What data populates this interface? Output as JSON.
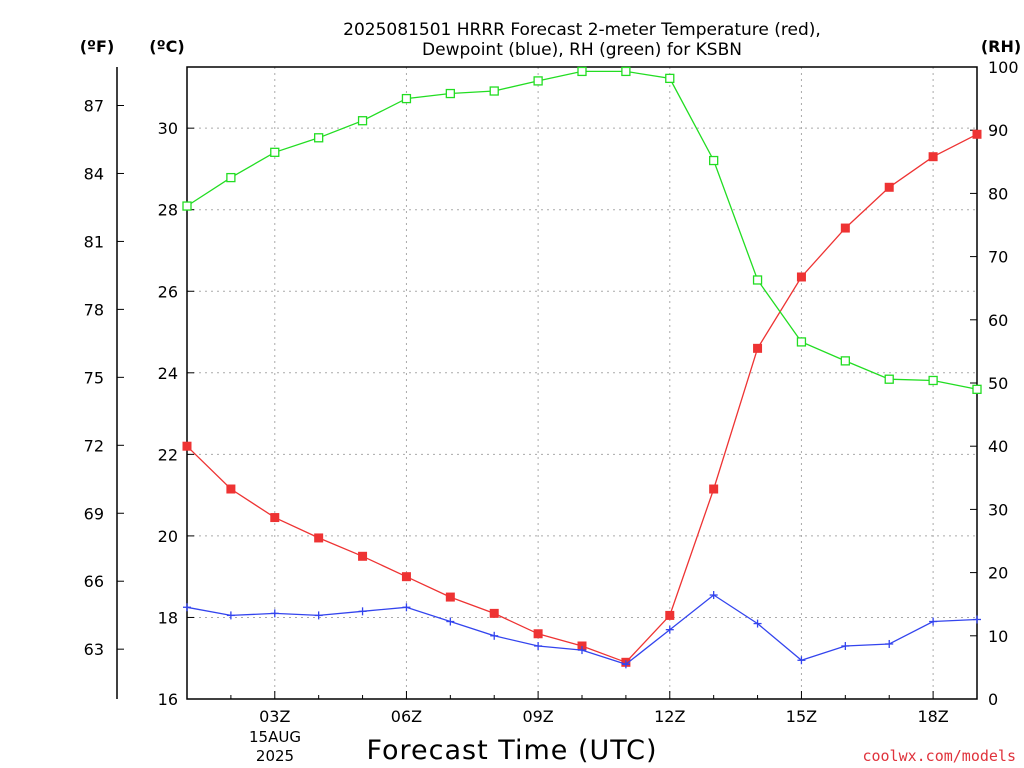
{
  "chart_data": {
    "type": "line",
    "title_line1": "2025081501 HRRR Forecast 2-meter Temperature (red),",
    "title_line2": "Dewpoint (blue), RH (green) for KSBN",
    "xlabel": "Forecast Time (UTC)",
    "left_outer_unit": "(ºF)",
    "left_inner_unit": "(ºC)",
    "right_unit": "(RH)",
    "credit": "coolwx.com/models",
    "x_tick_labels": [
      "03Z",
      "06Z",
      "09Z",
      "12Z",
      "15Z",
      "18Z"
    ],
    "x_tick_hours": [
      3,
      6,
      9,
      12,
      15,
      18
    ],
    "date_label_line1": "15AUG",
    "date_label_line2": "2025",
    "xlim": [
      1,
      19
    ],
    "ylim_c": [
      16,
      31.5
    ],
    "ylim_f": [
      60.8,
      88.7
    ],
    "ylim_rh": [
      0,
      100
    ],
    "f_ticks": [
      63,
      66,
      69,
      72,
      75,
      78,
      81,
      84,
      87
    ],
    "c_ticks": [
      16,
      18,
      20,
      22,
      24,
      26,
      28,
      30
    ],
    "rh_ticks": [
      0,
      10,
      20,
      30,
      40,
      50,
      60,
      70,
      80,
      90,
      100
    ],
    "grid": true,
    "series": [
      {
        "name": "Temperature",
        "color": "#ee3333",
        "marker": "filled-square",
        "axis": "c",
        "x": [
          1,
          2,
          3,
          4,
          5,
          6,
          7,
          8,
          9,
          10,
          11,
          12,
          13,
          14,
          15,
          16,
          17,
          18,
          19
        ],
        "values": [
          22.2,
          21.15,
          20.45,
          19.95,
          19.5,
          19.0,
          18.5,
          18.1,
          17.6,
          17.3,
          16.9,
          18.05,
          21.15,
          24.6,
          26.35,
          27.55,
          28.55,
          29.3,
          29.85
        ]
      },
      {
        "name": "Dewpoint",
        "color": "#3344ee",
        "marker": "plus",
        "axis": "c",
        "x": [
          1,
          2,
          3,
          4,
          5,
          6,
          7,
          8,
          9,
          10,
          11,
          12,
          13,
          14,
          15,
          16,
          17,
          18,
          19
        ],
        "values": [
          18.25,
          18.05,
          18.1,
          18.05,
          18.15,
          18.25,
          17.9,
          17.55,
          17.3,
          17.2,
          16.85,
          17.7,
          18.55,
          17.85,
          16.95,
          17.3,
          17.35,
          17.9,
          17.95
        ]
      },
      {
        "name": "RH",
        "color": "#22dd22",
        "marker": "open-square",
        "axis": "rh",
        "x": [
          1,
          2,
          3,
          4,
          5,
          6,
          7,
          8,
          9,
          10,
          11,
          12,
          13,
          14,
          15,
          16,
          17,
          18,
          19
        ],
        "values": [
          78,
          82.5,
          86.5,
          88.8,
          91.5,
          95,
          95.8,
          96.2,
          97.8,
          99.3,
          99.3,
          98.2,
          85.2,
          66.3,
          56.5,
          53.5,
          50.6,
          50.4,
          49
        ]
      }
    ]
  }
}
